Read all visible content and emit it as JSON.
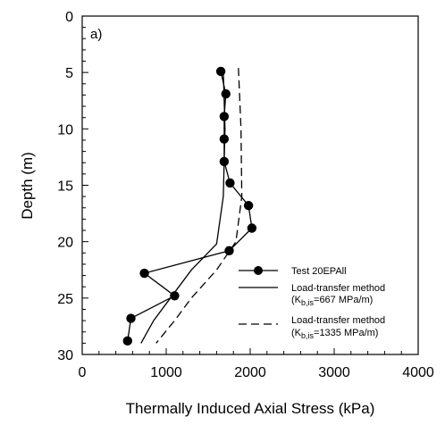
{
  "chart_data": {
    "type": "line",
    "panel_label": "a)",
    "xlabel": "Thermally Induced Axial Stress (kPa)",
    "ylabel": "Depth (m)",
    "xlim": [
      0,
      4000
    ],
    "ylim": [
      30,
      0
    ],
    "x_ticks": [
      0,
      1000,
      2000,
      3000,
      4000
    ],
    "y_ticks": [
      0,
      5,
      10,
      15,
      20,
      25,
      30
    ],
    "x_minor_step": 200,
    "y_minor_step": 1,
    "grid": false,
    "legend_position": "bottom-right",
    "series": [
      {
        "name": "Test 20EPAll",
        "style": "line-markers",
        "color": "#000000",
        "points": [
          [
            1650,
            4.9
          ],
          [
            1710,
            6.9
          ],
          [
            1690,
            8.9
          ],
          [
            1690,
            10.9
          ],
          [
            1690,
            12.9
          ],
          [
            1760,
            14.8
          ],
          [
            1980,
            16.8
          ],
          [
            2020,
            18.8
          ],
          [
            1750,
            20.8
          ],
          [
            740,
            22.8
          ],
          [
            1100,
            24.8
          ],
          [
            580,
            26.8
          ],
          [
            540,
            28.8
          ]
        ]
      },
      {
        "name": "Load-transfer method",
        "name_suffix": "(K",
        "subscript": "b,is",
        "param": "=667 MPa/m)",
        "style": "solid",
        "color": "#000000",
        "points": [
          [
            1680,
            4.9
          ],
          [
            1700,
            10
          ],
          [
            1680,
            16
          ],
          [
            1600,
            20.2
          ],
          [
            1300,
            22.5
          ],
          [
            1050,
            25
          ],
          [
            850,
            27
          ],
          [
            700,
            29
          ]
        ]
      },
      {
        "name": "Load-transfer method",
        "name_suffix": "(K",
        "subscript": "b,is",
        "param": "=1335 MPa/m)",
        "style": "dashed",
        "color": "#000000",
        "points": [
          [
            1860,
            4.6
          ],
          [
            1890,
            10
          ],
          [
            1900,
            16
          ],
          [
            1830,
            20
          ],
          [
            1600,
            22.5
          ],
          [
            1300,
            25
          ],
          [
            1100,
            27
          ],
          [
            880,
            29
          ]
        ]
      }
    ]
  }
}
